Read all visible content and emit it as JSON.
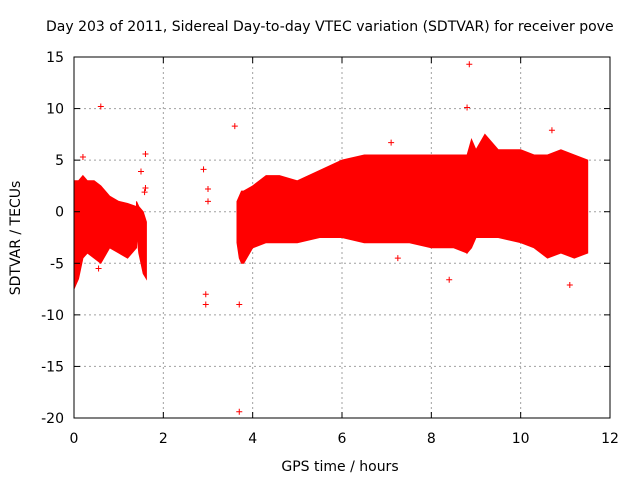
{
  "chart_data": {
    "type": "scatter",
    "title": "Day 203 of 2011, Sidereal Day-to-day VTEC variation (SDTVAR) for receiver pove",
    "xlabel": "GPS time / hours",
    "ylabel": "SDTVAR / TECUs",
    "xlim": [
      0,
      12
    ],
    "ylim": [
      -20,
      15
    ],
    "xticks": [
      0,
      2,
      4,
      6,
      8,
      10,
      12
    ],
    "yticks": [
      -20,
      -15,
      -10,
      -5,
      0,
      5,
      10,
      15
    ],
    "grid": true,
    "marker": "+",
    "color": "#ff0000",
    "band_segments": [
      {
        "name": "segment-1",
        "x": [
          0.0,
          0.05,
          0.1,
          0.2,
          0.3,
          0.45,
          0.6,
          0.8,
          1.0,
          1.2,
          1.4
        ],
        "upper": [
          3.0,
          3.0,
          3.0,
          3.5,
          3.0,
          3.0,
          2.5,
          1.5,
          1.0,
          0.8,
          0.5
        ],
        "lower": [
          -7.5,
          -7.0,
          -6.5,
          -4.5,
          -4.0,
          -4.5,
          -5.0,
          -3.5,
          -4.0,
          -4.5,
          -3.5
        ]
      },
      {
        "name": "segment-2",
        "x": [
          1.4,
          1.45,
          1.55,
          1.62
        ],
        "upper": [
          1.0,
          0.5,
          0.0,
          -1.0
        ],
        "lower": [
          -2.0,
          -4.0,
          -6.0,
          -6.5
        ]
      },
      {
        "name": "segment-3",
        "x": [
          3.65,
          3.7,
          3.75,
          3.8,
          4.0,
          4.3,
          4.6,
          5.0,
          5.5,
          6.0,
          6.5,
          7.0,
          7.5,
          8.0,
          8.5,
          8.8
        ],
        "upper": [
          1.0,
          1.5,
          2.0,
          2.0,
          2.5,
          3.5,
          3.5,
          3.0,
          4.0,
          5.0,
          5.5,
          5.5,
          5.5,
          5.5,
          5.5,
          5.5
        ],
        "lower": [
          -3.0,
          -4.5,
          -5.0,
          -5.0,
          -3.5,
          -3.0,
          -3.0,
          -3.0,
          -2.5,
          -2.5,
          -3.0,
          -3.0,
          -3.0,
          -3.5,
          -3.5,
          -4.0
        ]
      },
      {
        "name": "segment-4",
        "x": [
          8.8,
          8.9,
          9.0,
          9.2,
          9.5,
          10.0,
          10.3,
          10.6,
          10.9,
          11.2,
          11.5
        ],
        "upper": [
          5.5,
          7.0,
          6.0,
          7.5,
          6.0,
          6.0,
          5.5,
          5.5,
          6.0,
          5.5,
          5.0
        ],
        "lower": [
          -4.0,
          -3.5,
          -2.5,
          -2.5,
          -2.5,
          -3.0,
          -3.5,
          -4.5,
          -4.0,
          -4.5,
          -4.0
        ]
      }
    ],
    "points": [
      {
        "x": 0.6,
        "y": 10.2
      },
      {
        "x": 1.5,
        "y": 3.9
      },
      {
        "x": 1.6,
        "y": 5.6
      },
      {
        "x": 1.6,
        "y": 2.3
      },
      {
        "x": 1.58,
        "y": 1.9
      },
      {
        "x": 2.9,
        "y": 4.1
      },
      {
        "x": 3.0,
        "y": 2.2
      },
      {
        "x": 3.0,
        "y": 1.0
      },
      {
        "x": 2.95,
        "y": -8.0
      },
      {
        "x": 2.95,
        "y": -9.0
      },
      {
        "x": 3.6,
        "y": 8.3
      },
      {
        "x": 3.7,
        "y": -19.4
      },
      {
        "x": 3.7,
        "y": -9.0
      },
      {
        "x": 7.1,
        "y": 6.7
      },
      {
        "x": 8.4,
        "y": -6.6
      },
      {
        "x": 8.8,
        "y": 10.1
      },
      {
        "x": 8.85,
        "y": 14.3
      },
      {
        "x": 10.7,
        "y": 7.9
      },
      {
        "x": 11.1,
        "y": -7.1
      },
      {
        "x": 0.2,
        "y": 5.3
      },
      {
        "x": 0.55,
        "y": -5.5
      },
      {
        "x": 7.25,
        "y": -4.5
      }
    ]
  }
}
